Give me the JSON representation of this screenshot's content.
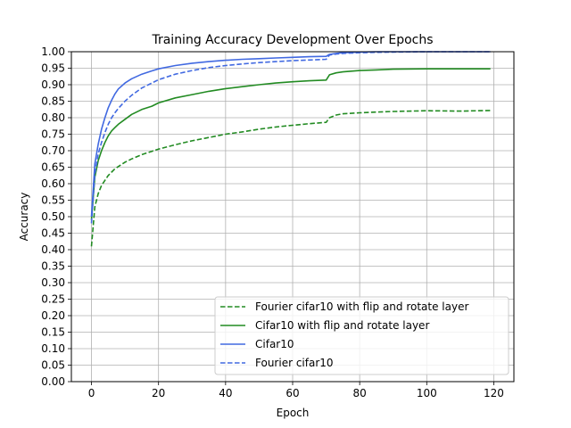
{
  "chart_data": {
    "type": "line",
    "title": "Training Accuracy Development Over Epochs",
    "xlabel": "Epoch",
    "ylabel": "Accuracy",
    "xlim": [
      -6,
      126
    ],
    "ylim": [
      0.0,
      1.0
    ],
    "xticks": [
      0,
      20,
      40,
      60,
      80,
      100,
      120
    ],
    "yticks": [
      0.0,
      0.05,
      0.1,
      0.15,
      0.2,
      0.25,
      0.3,
      0.35,
      0.4,
      0.45,
      0.5,
      0.55,
      0.6,
      0.65,
      0.7,
      0.75,
      0.8,
      0.85,
      0.9,
      0.95,
      1.0
    ],
    "xtick_labels": [
      "0",
      "20",
      "40",
      "60",
      "80",
      "100",
      "120"
    ],
    "ytick_labels": [
      "0.00",
      "0.05",
      "0.10",
      "0.15",
      "0.20",
      "0.25",
      "0.30",
      "0.35",
      "0.40",
      "0.45",
      "0.50",
      "0.55",
      "0.60",
      "0.65",
      "0.70",
      "0.75",
      "0.80",
      "0.85",
      "0.90",
      "0.95",
      "1.00"
    ],
    "grid": true,
    "legend_position": "bottom-right",
    "series": [
      {
        "name": "Fourier cifar10 with flip and rotate layer",
        "color": "#228b22",
        "dash": "dashed",
        "x": [
          0,
          1,
          2,
          3,
          4,
          5,
          6,
          7,
          8,
          10,
          12,
          15,
          18,
          20,
          25,
          30,
          35,
          40,
          45,
          50,
          55,
          60,
          65,
          70,
          71,
          73,
          75,
          80,
          85,
          90,
          100,
          110,
          119
        ],
        "y": [
          0.41,
          0.53,
          0.57,
          0.595,
          0.61,
          0.625,
          0.635,
          0.645,
          0.652,
          0.665,
          0.675,
          0.688,
          0.698,
          0.705,
          0.718,
          0.73,
          0.74,
          0.75,
          0.757,
          0.765,
          0.772,
          0.777,
          0.782,
          0.786,
          0.8,
          0.808,
          0.812,
          0.815,
          0.817,
          0.819,
          0.821,
          0.82,
          0.822
        ]
      },
      {
        "name": "Cifar10 with flip and rotate layer",
        "color": "#228b22",
        "dash": "solid",
        "x": [
          0,
          1,
          2,
          3,
          4,
          5,
          6,
          7,
          8,
          10,
          12,
          15,
          18,
          20,
          25,
          30,
          35,
          40,
          45,
          50,
          55,
          60,
          65,
          70,
          71,
          73,
          75,
          80,
          85,
          90,
          100,
          110,
          119
        ],
        "y": [
          0.49,
          0.62,
          0.67,
          0.7,
          0.725,
          0.745,
          0.76,
          0.77,
          0.78,
          0.795,
          0.81,
          0.825,
          0.835,
          0.845,
          0.86,
          0.87,
          0.88,
          0.888,
          0.894,
          0.9,
          0.905,
          0.909,
          0.912,
          0.914,
          0.93,
          0.936,
          0.939,
          0.943,
          0.945,
          0.947,
          0.948,
          0.948,
          0.948
        ]
      },
      {
        "name": "Cifar10",
        "color": "#4169e1",
        "dash": "solid",
        "x": [
          0,
          1,
          2,
          3,
          4,
          5,
          6,
          7,
          8,
          10,
          12,
          15,
          18,
          20,
          25,
          30,
          35,
          40,
          45,
          50,
          55,
          60,
          65,
          70,
          71,
          73,
          75,
          80,
          85,
          90,
          100,
          110,
          119
        ],
        "y": [
          0.5,
          0.66,
          0.72,
          0.765,
          0.8,
          0.83,
          0.853,
          0.872,
          0.887,
          0.905,
          0.918,
          0.932,
          0.942,
          0.948,
          0.958,
          0.965,
          0.97,
          0.974,
          0.977,
          0.979,
          0.981,
          0.983,
          0.985,
          0.986,
          0.992,
          0.995,
          0.997,
          0.999,
          1.0,
          1.0,
          1.0,
          1.0,
          1.0
        ]
      },
      {
        "name": "Fourier cifar10",
        "color": "#4169e1",
        "dash": "dashed",
        "x": [
          0,
          1,
          2,
          3,
          4,
          5,
          6,
          7,
          8,
          10,
          12,
          15,
          18,
          20,
          25,
          30,
          35,
          40,
          45,
          50,
          55,
          60,
          65,
          70,
          71,
          73,
          75,
          80,
          85,
          90,
          100,
          110,
          119
        ],
        "y": [
          0.48,
          0.63,
          0.69,
          0.725,
          0.755,
          0.78,
          0.8,
          0.815,
          0.828,
          0.85,
          0.868,
          0.89,
          0.905,
          0.915,
          0.932,
          0.943,
          0.952,
          0.958,
          0.963,
          0.967,
          0.97,
          0.973,
          0.975,
          0.977,
          0.99,
          0.993,
          0.995,
          0.997,
          0.998,
          0.999,
          1.0,
          1.0,
          1.0
        ]
      }
    ]
  }
}
